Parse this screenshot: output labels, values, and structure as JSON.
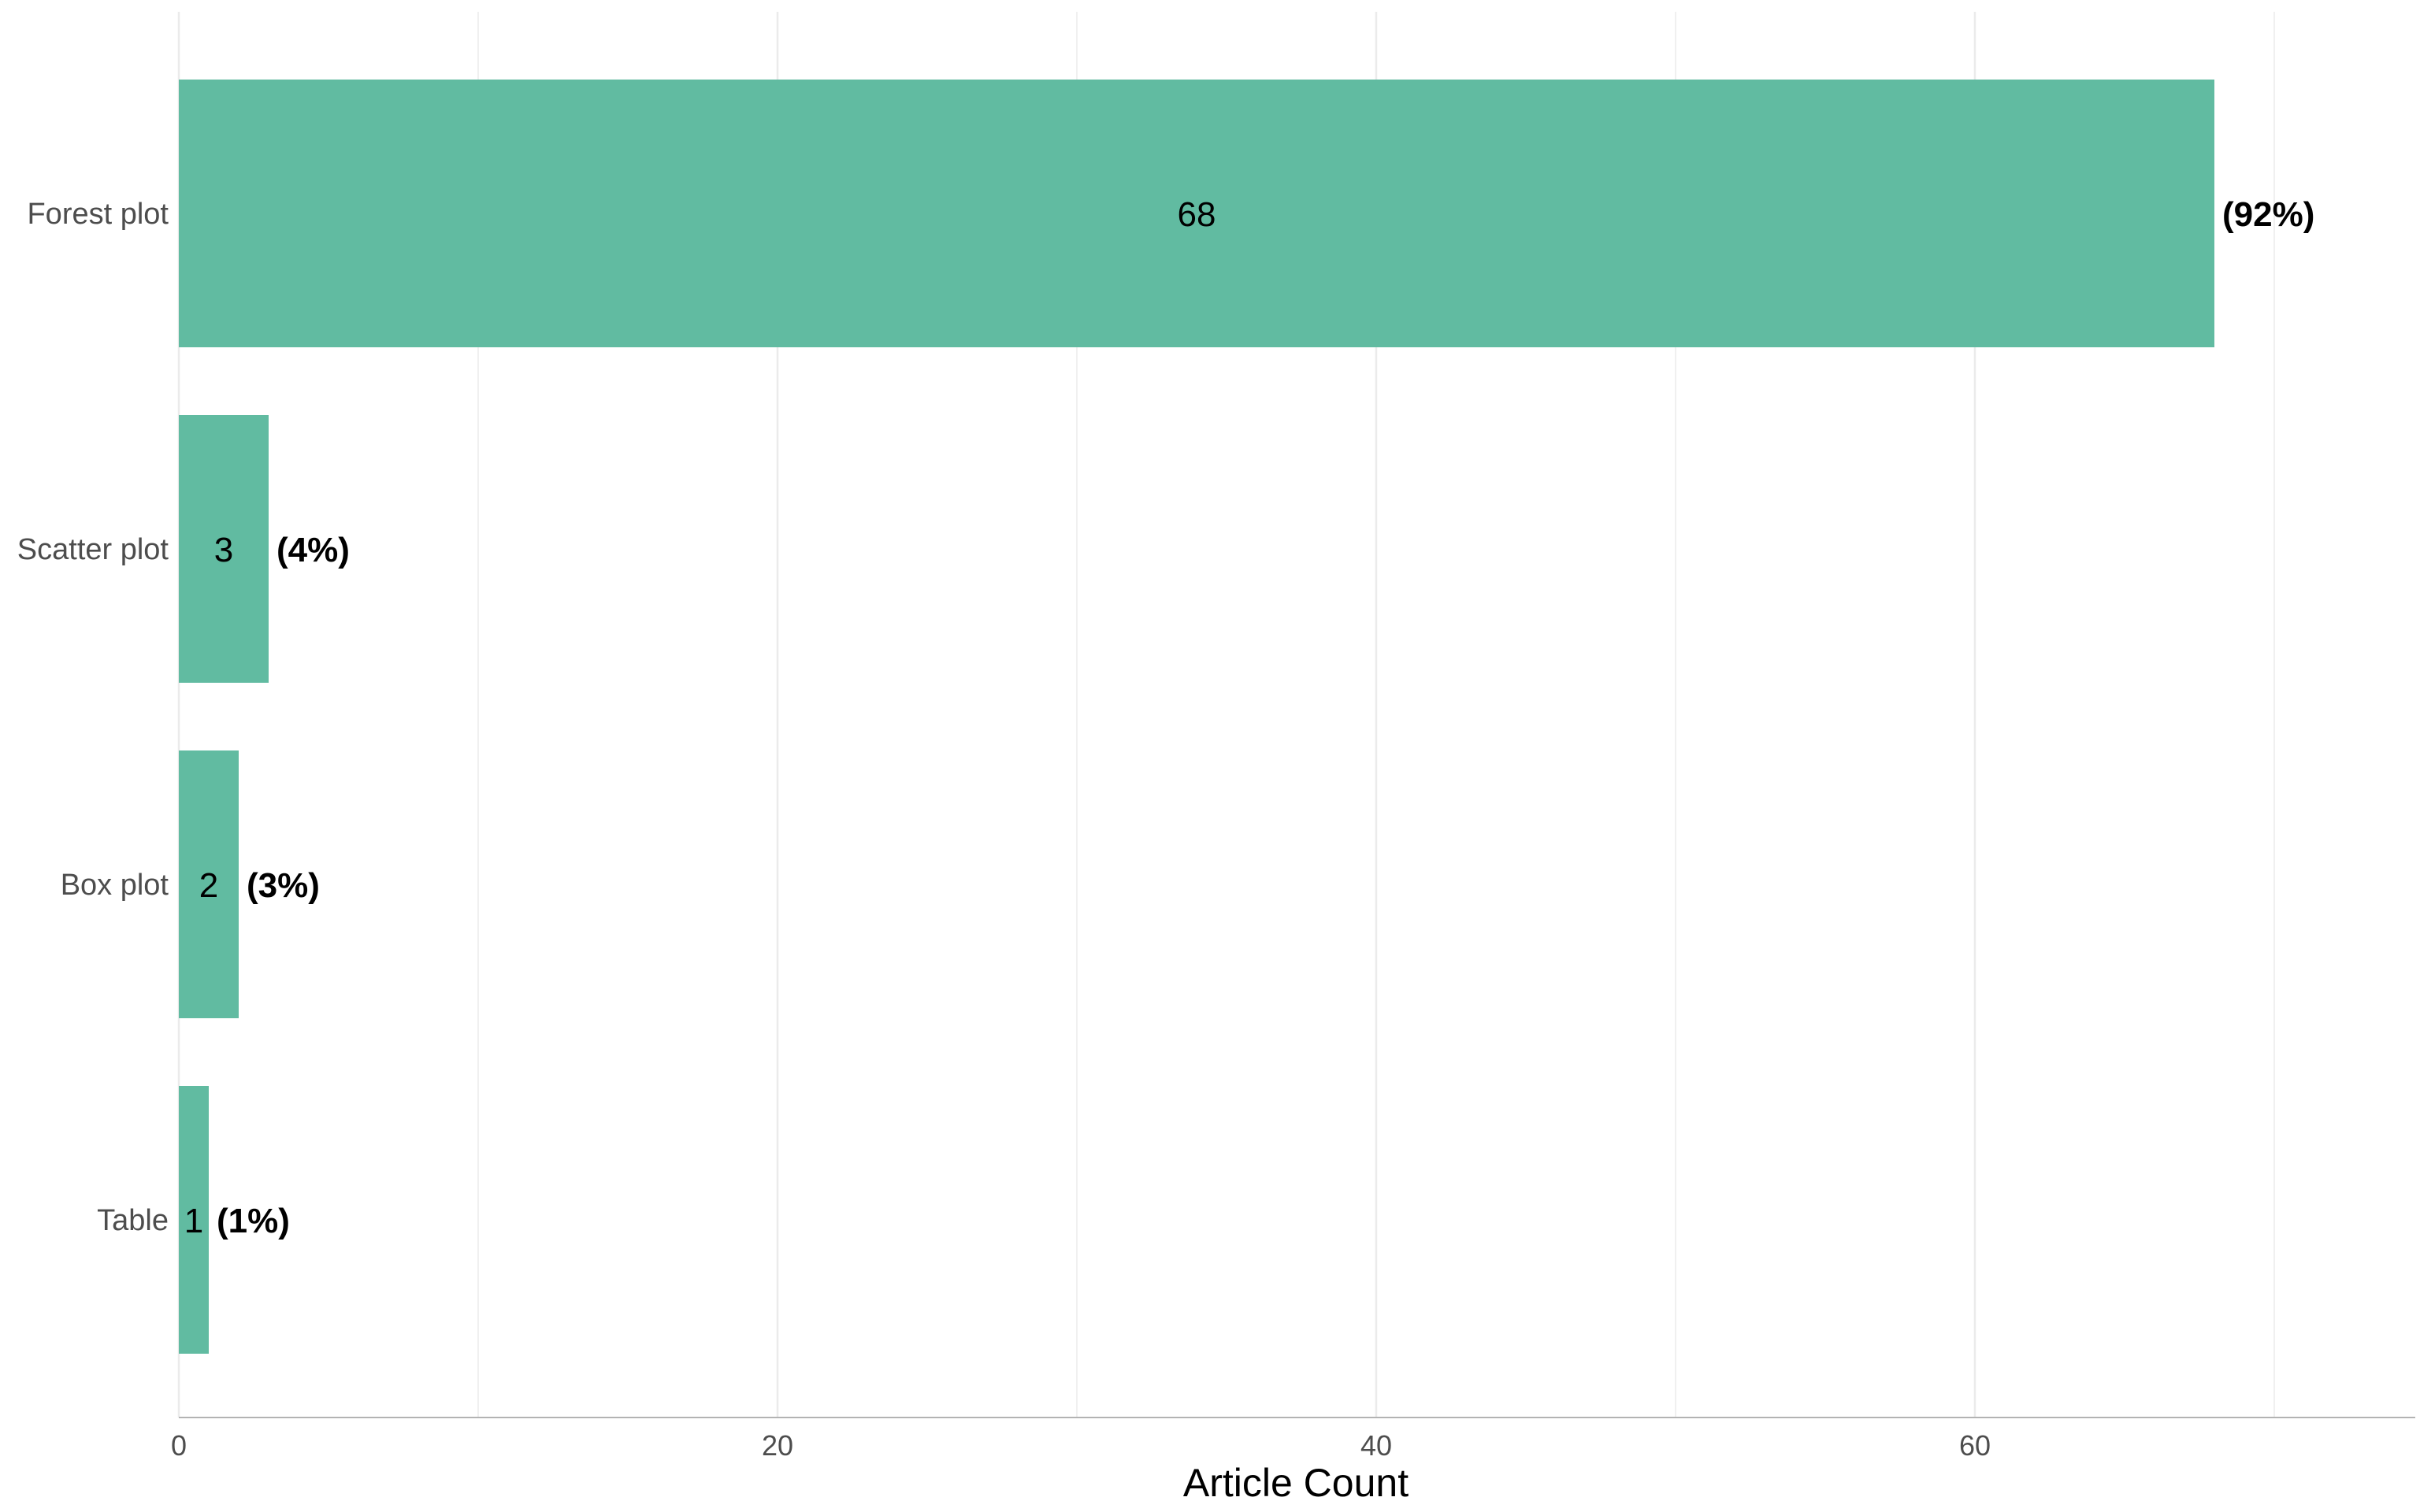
{
  "chart_data": {
    "type": "bar",
    "orientation": "horizontal",
    "categories": [
      "Forest plot",
      "Scatter plot",
      "Box plot",
      "Table"
    ],
    "values": [
      68,
      3,
      2,
      1
    ],
    "value_labels": [
      "68",
      "3",
      "2",
      "1"
    ],
    "percent_labels": [
      "(92%)",
      "(4%)",
      "(3%)",
      "(1%)"
    ],
    "title": "",
    "xlabel": "Article Count",
    "ylabel": "",
    "xlim": [
      0,
      74.8
    ],
    "x_ticks": [
      0,
      20,
      40,
      60
    ],
    "x_tick_labels": [
      "0",
      "20",
      "40",
      "60"
    ],
    "x_minor_grid": [
      10,
      30,
      50,
      70
    ],
    "grid": "vertical",
    "legend": "none",
    "colors": {
      "bar": "#61bba1",
      "grid": "#ebebeb",
      "axis_line": "#b3b3b3",
      "background": "#ffffff"
    }
  }
}
